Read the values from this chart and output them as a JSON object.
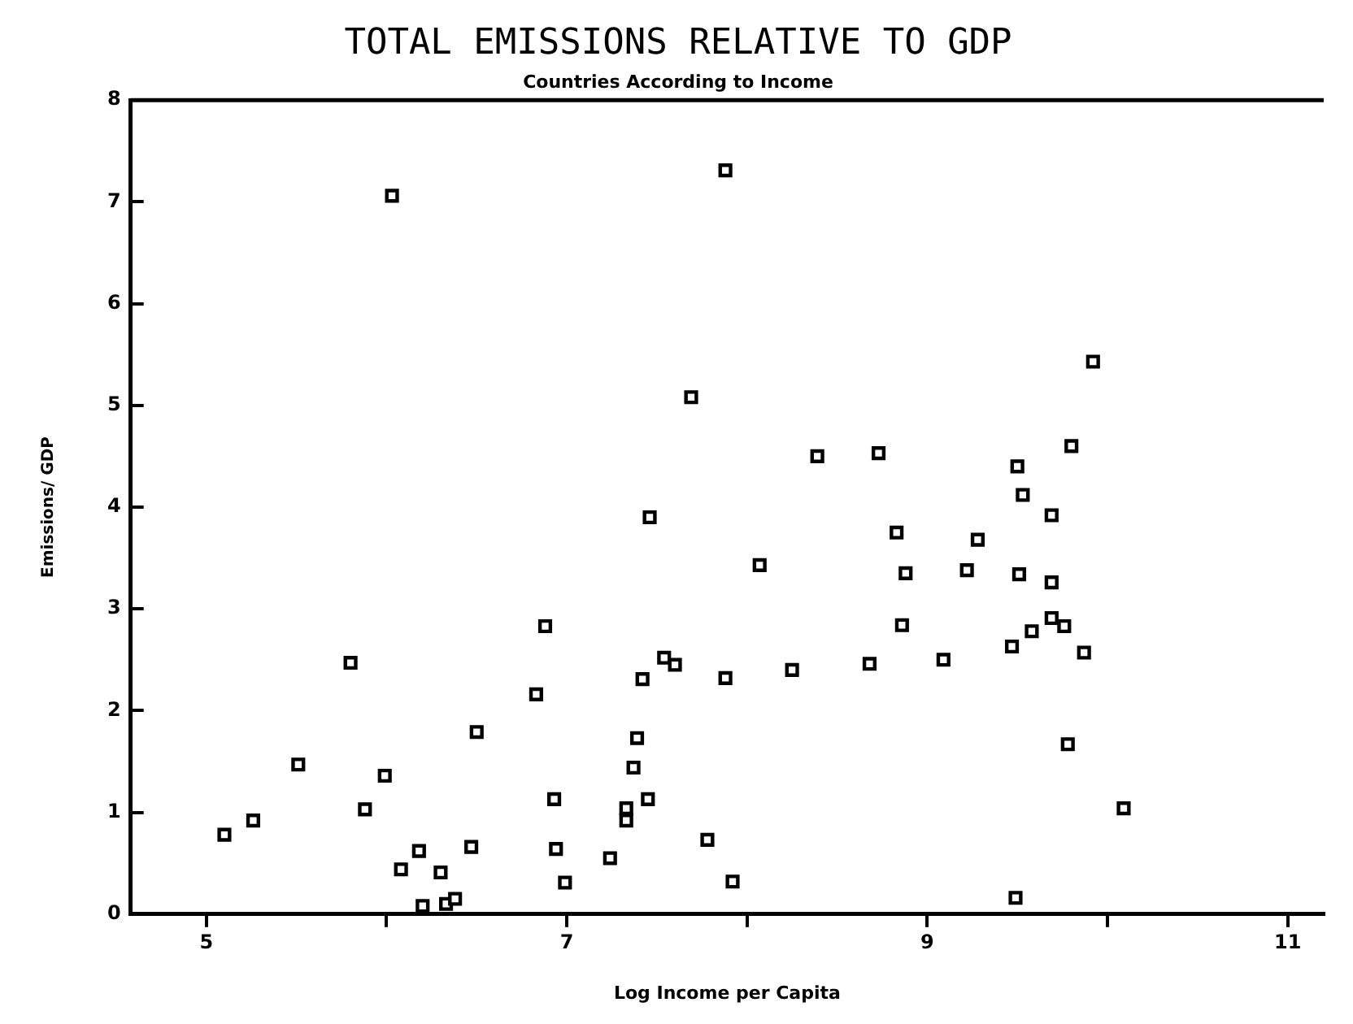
{
  "chart_data": {
    "type": "scatter",
    "title": "TOTAL EMISSIONS RELATIVE TO GDP",
    "subtitle": "Countries According to Income",
    "xlabel": "Log Income per Capita",
    "ylabel": "Emissions/ GDP",
    "xlim": [
      4.58,
      11.2
    ],
    "xticks": [
      5,
      {
        "value": 6,
        "label": null
      },
      7,
      {
        "value": 8,
        "label": null
      },
      9,
      {
        "value": 10,
        "label": null
      },
      11
    ],
    "ylim": [
      0,
      8
    ],
    "yticks": [
      0,
      1,
      2,
      3,
      4,
      5,
      6,
      7,
      8
    ],
    "grid": false,
    "legend": false,
    "marker": "square",
    "series": [
      {
        "color": "#000000",
        "x": [
          6.03,
          7.69,
          7.46,
          6.88,
          5.8,
          7.54,
          7.6,
          7.42,
          6.83,
          6.5,
          5.51,
          7.39,
          5.99,
          7.37,
          5.88,
          6.93,
          7.45,
          7.33,
          7.33,
          5.26,
          5.1,
          6.18,
          6.08,
          6.3,
          6.47,
          6.2,
          6.33,
          6.38,
          6.94,
          6.99,
          7.24,
          7.78,
          7.92,
          9.49,
          10.09,
          7.88,
          9.92,
          9.8,
          8.39,
          8.73,
          9.5,
          9.53,
          9.69,
          8.83,
          9.28,
          8.07,
          8.88,
          9.22,
          9.51,
          9.69,
          8.86,
          9.69,
          9.76,
          9.58,
          9.47,
          9.87,
          9.09,
          8.68,
          8.25,
          7.88,
          9.78
        ],
        "values": [
          7.06,
          5.08,
          3.9,
          2.83,
          2.47,
          2.52,
          2.45,
          2.31,
          2.16,
          1.79,
          1.47,
          1.73,
          1.36,
          1.44,
          1.03,
          1.13,
          1.13,
          1.04,
          0.92,
          0.92,
          0.78,
          0.62,
          0.44,
          0.41,
          0.66,
          0.08,
          0.1,
          0.15,
          0.64,
          0.31,
          0.55,
          0.73,
          0.32,
          0.16,
          1.04,
          7.31,
          5.43,
          4.6,
          4.5,
          4.53,
          4.4,
          4.12,
          3.92,
          3.75,
          3.68,
          3.43,
          3.35,
          3.38,
          3.34,
          3.26,
          2.84,
          2.91,
          2.83,
          2.78,
          2.63,
          2.57,
          2.5,
          2.46,
          2.4,
          2.32,
          1.67
        ]
      }
    ]
  }
}
